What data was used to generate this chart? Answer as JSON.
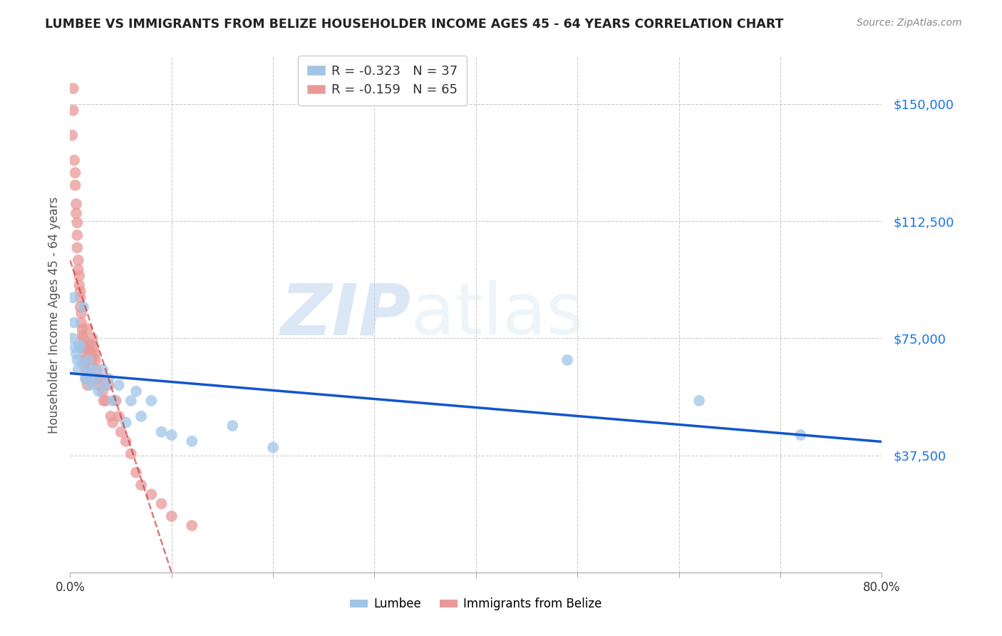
{
  "title": "LUMBEE VS IMMIGRANTS FROM BELIZE HOUSEHOLDER INCOME AGES 45 - 64 YEARS CORRELATION CHART",
  "source": "Source: ZipAtlas.com",
  "ylabel": "Householder Income Ages 45 - 64 years",
  "xmin": 0.0,
  "xmax": 0.8,
  "ymin": 0,
  "ymax": 165000,
  "yticks": [
    0,
    37500,
    75000,
    112500,
    150000
  ],
  "ytick_labels": [
    "",
    "$37,500",
    "$75,000",
    "$112,500",
    "$150,000"
  ],
  "legend_lumbee_r": "-0.323",
  "legend_lumbee_n": "37",
  "legend_belize_r": "-0.159",
  "legend_belize_n": "65",
  "lumbee_color": "#9fc5e8",
  "belize_color": "#ea9999",
  "lumbee_line_color": "#1155cc",
  "belize_line_color": "#cc3333",
  "lumbee_x": [
    0.002,
    0.003,
    0.004,
    0.005,
    0.006,
    0.007,
    0.008,
    0.009,
    0.01,
    0.012,
    0.013,
    0.015,
    0.016,
    0.017,
    0.018,
    0.02,
    0.022,
    0.025,
    0.028,
    0.032,
    0.035,
    0.038,
    0.042,
    0.048,
    0.055,
    0.06,
    0.065,
    0.07,
    0.08,
    0.09,
    0.1,
    0.12,
    0.16,
    0.2,
    0.49,
    0.62,
    0.72
  ],
  "lumbee_y": [
    75000,
    88000,
    80000,
    72000,
    70000,
    68000,
    65000,
    73000,
    72000,
    67000,
    85000,
    62000,
    63000,
    64000,
    68000,
    60000,
    65000,
    62000,
    58000,
    65000,
    60000,
    62000,
    55000,
    60000,
    48000,
    55000,
    58000,
    50000,
    55000,
    45000,
    44000,
    42000,
    47000,
    40000,
    68000,
    55000,
    44000
  ],
  "belize_x": [
    0.002,
    0.003,
    0.003,
    0.004,
    0.005,
    0.005,
    0.006,
    0.006,
    0.007,
    0.007,
    0.007,
    0.008,
    0.008,
    0.009,
    0.009,
    0.01,
    0.01,
    0.01,
    0.011,
    0.011,
    0.012,
    0.012,
    0.013,
    0.013,
    0.014,
    0.014,
    0.015,
    0.015,
    0.015,
    0.016,
    0.016,
    0.017,
    0.017,
    0.018,
    0.018,
    0.019,
    0.02,
    0.02,
    0.021,
    0.022,
    0.022,
    0.023,
    0.024,
    0.025,
    0.026,
    0.027,
    0.028,
    0.03,
    0.032,
    0.033,
    0.035,
    0.038,
    0.04,
    0.042,
    0.045,
    0.048,
    0.05,
    0.055,
    0.06,
    0.065,
    0.07,
    0.08,
    0.09,
    0.1,
    0.12
  ],
  "belize_y": [
    140000,
    155000,
    148000,
    132000,
    128000,
    124000,
    118000,
    115000,
    112000,
    108000,
    104000,
    100000,
    97000,
    95000,
    92000,
    90000,
    88000,
    85000,
    83000,
    80000,
    78000,
    76000,
    75000,
    73000,
    72000,
    70000,
    68000,
    67000,
    65000,
    63000,
    62000,
    60000,
    78000,
    68000,
    72000,
    70000,
    68000,
    73000,
    70000,
    75000,
    68000,
    72000,
    70000,
    68000,
    65000,
    62000,
    60000,
    62000,
    58000,
    55000,
    55000,
    60000,
    50000,
    48000,
    55000,
    50000,
    45000,
    42000,
    38000,
    32000,
    28000,
    25000,
    22000,
    18000,
    15000
  ]
}
